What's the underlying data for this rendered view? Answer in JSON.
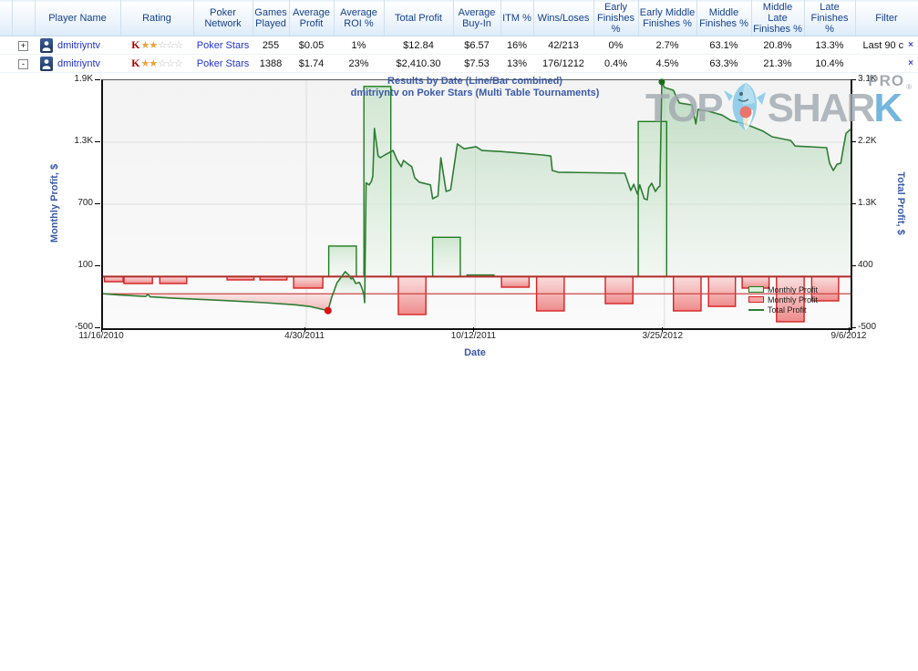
{
  "table": {
    "columns": [
      "",
      "",
      "Player Name",
      "Rating",
      "Poker Network",
      "Games Played",
      "Average Profit",
      "Average ROI %",
      "Total Profit",
      "Average Buy-In",
      "ITM %",
      "Wins/Loses",
      "Early Finishes %",
      "Early Middle Finishes %",
      "Middle Finishes %",
      "Middle Late Finishes %",
      "Late Finishes %",
      "Filter"
    ],
    "rows": [
      {
        "expand": "+",
        "player": "dmitriyntv",
        "rating_letter": "K",
        "stars_filled": "★★",
        "stars_empty": "☆☆☆",
        "network": "Poker Stars",
        "games_played": "255",
        "average_profit": "$0.05",
        "average_roi": "1%",
        "total_profit": "$12.84",
        "average_buyin": "$6.57",
        "itm": "16%",
        "wins_loses": "42/213",
        "early_finishes": "0%",
        "early_middle_finishes": "2.7%",
        "middle_finishes": "63.1%",
        "middle_late_finishes": "20.8%",
        "late_finishes": "13.3%",
        "filter": "Last 90 c",
        "remove": "×"
      },
      {
        "expand": "-",
        "player": "dmitriyntv",
        "rating_letter": "K",
        "stars_filled": "★★",
        "stars_empty": "☆☆☆",
        "network": "Poker Stars",
        "games_played": "1388",
        "average_profit": "$1.74",
        "average_roi": "23%",
        "total_profit": "$2,410.30",
        "average_buyin": "$7.53",
        "itm": "13%",
        "wins_loses": "176/1212",
        "early_finishes": "0.4%",
        "early_middle_finishes": "4.5%",
        "middle_finishes": "63.3%",
        "middle_late_finishes": "21.3%",
        "late_finishes": "10.4%",
        "filter": "",
        "remove": "×"
      }
    ]
  },
  "chart_data": {
    "type": "line+bar",
    "title_line1": "Results by Date (Line/Bar combined)",
    "title_line2": "dmitriyntv on Poker Stars (Multi Table Tournaments)",
    "x_axis": {
      "label": "Date",
      "ticks": [
        {
          "label": "11/16/2010",
          "f": 0.0
        },
        {
          "label": "4/30/2011",
          "f": 0.272
        },
        {
          "label": "10/12/2011",
          "f": 0.498
        },
        {
          "label": "3/25/2012",
          "f": 0.751
        },
        {
          "label": "9/6/2012",
          "f": 1.0
        }
      ]
    },
    "left_axis": {
      "label": "Monthly Profit, $",
      "min": -500,
      "max": 1900,
      "ticks": [
        {
          "label": "1.9K",
          "v": 1900
        },
        {
          "label": "1.3K",
          "v": 1300
        },
        {
          "label": "700",
          "v": 700
        },
        {
          "label": "100",
          "v": 100
        },
        {
          "label": "-500",
          "v": -500
        }
      ]
    },
    "right_axis": {
      "label": "Total Profit, $",
      "min": -500,
      "max": 3100,
      "ticks": [
        {
          "label": "3.1K",
          "v": 3100
        },
        {
          "label": "2.2K",
          "v": 2200
        },
        {
          "label": "1.3K",
          "v": 1300
        },
        {
          "label": "400",
          "v": 400
        },
        {
          "label": "-500",
          "v": -500
        }
      ]
    },
    "legend": [
      {
        "label": "Monthly Profit",
        "type": "bar-green"
      },
      {
        "label": "Monthly Profit",
        "type": "bar-red"
      },
      {
        "label": "Total Profit",
        "type": "line"
      }
    ],
    "bars_monthly_profit": [
      {
        "f0": 0.002,
        "f1": 0.027,
        "v": -50
      },
      {
        "f0": 0.028,
        "f1": 0.066,
        "v": -68
      },
      {
        "f0": 0.076,
        "f1": 0.112,
        "v": -68
      },
      {
        "f0": 0.166,
        "f1": 0.202,
        "v": -33
      },
      {
        "f0": 0.21,
        "f1": 0.246,
        "v": -33
      },
      {
        "f0": 0.255,
        "f1": 0.294,
        "v": -112
      },
      {
        "f0": 0.302,
        "f1": 0.339,
        "v": 295
      },
      {
        "f0": 0.349,
        "f1": 0.385,
        "v": 1840
      },
      {
        "f0": 0.395,
        "f1": 0.432,
        "v": -368
      },
      {
        "f0": 0.441,
        "f1": 0.478,
        "v": 380
      },
      {
        "f0": 0.487,
        "f1": 0.523,
        "v": 15
      },
      {
        "f0": 0.533,
        "f1": 0.57,
        "v": -103
      },
      {
        "f0": 0.58,
        "f1": 0.617,
        "v": -333
      },
      {
        "f0": 0.672,
        "f1": 0.709,
        "v": -262
      },
      {
        "f0": 0.716,
        "f1": 0.754,
        "v": 1500
      },
      {
        "f0": 0.763,
        "f1": 0.8,
        "v": -333
      },
      {
        "f0": 0.81,
        "f1": 0.846,
        "v": -289
      },
      {
        "f0": 0.855,
        "f1": 0.891,
        "v": -112
      },
      {
        "f0": 0.901,
        "f1": 0.938,
        "v": -438
      },
      {
        "f0": 0.948,
        "f1": 0.984,
        "v": -236
      }
    ],
    "line_total_profit": [
      [
        0.0,
        0
      ],
      [
        0.02,
        -15
      ],
      [
        0.033,
        -25
      ],
      [
        0.057,
        -40
      ],
      [
        0.06,
        -10
      ],
      [
        0.063,
        -45
      ],
      [
        0.094,
        -65
      ],
      [
        0.135,
        -85
      ],
      [
        0.176,
        -105
      ],
      [
        0.216,
        -130
      ],
      [
        0.257,
        -160
      ],
      [
        0.277,
        -185
      ],
      [
        0.289,
        -215
      ],
      [
        0.301,
        -245
      ],
      [
        0.306,
        -50
      ],
      [
        0.313,
        160
      ],
      [
        0.324,
        320
      ],
      [
        0.328,
        280
      ],
      [
        0.332,
        215
      ],
      [
        0.334,
        230
      ],
      [
        0.338,
        150
      ],
      [
        0.343,
        165
      ],
      [
        0.346,
        95
      ],
      [
        0.349,
        -15
      ],
      [
        0.35,
        -130
      ],
      [
        0.352,
        1610
      ],
      [
        0.356,
        1580
      ],
      [
        0.359,
        1630
      ],
      [
        0.361,
        1710
      ],
      [
        0.363,
        2400
      ],
      [
        0.366,
        2170
      ],
      [
        0.368,
        2000
      ],
      [
        0.371,
        1975
      ],
      [
        0.377,
        2015
      ],
      [
        0.388,
        2080
      ],
      [
        0.393,
        1950
      ],
      [
        0.399,
        1845
      ],
      [
        0.402,
        1935
      ],
      [
        0.409,
        1875
      ],
      [
        0.413,
        1845
      ],
      [
        0.417,
        1685
      ],
      [
        0.423,
        1620
      ],
      [
        0.438,
        1580
      ],
      [
        0.441,
        1380
      ],
      [
        0.448,
        1420
      ],
      [
        0.452,
        1975
      ],
      [
        0.459,
        1485
      ],
      [
        0.465,
        1510
      ],
      [
        0.474,
        2175
      ],
      [
        0.483,
        2105
      ],
      [
        0.499,
        2135
      ],
      [
        0.507,
        2080
      ],
      [
        0.532,
        2065
      ],
      [
        0.56,
        2040
      ],
      [
        0.588,
        2015
      ],
      [
        0.599,
        2000
      ],
      [
        0.601,
        1790
      ],
      [
        0.609,
        1765
      ],
      [
        0.698,
        1750
      ],
      [
        0.706,
        1500
      ],
      [
        0.71,
        1590
      ],
      [
        0.715,
        1445
      ],
      [
        0.718,
        1580
      ],
      [
        0.724,
        1380
      ],
      [
        0.728,
        1365
      ],
      [
        0.73,
        1540
      ],
      [
        0.734,
        1605
      ],
      [
        0.739,
        1485
      ],
      [
        0.743,
        1550
      ],
      [
        0.745,
        1560
      ],
      [
        0.7475,
        3075
      ],
      [
        0.751,
        2995
      ],
      [
        0.763,
        2955
      ],
      [
        0.767,
        2860
      ],
      [
        0.771,
        2770
      ],
      [
        0.788,
        2740
      ],
      [
        0.793,
        2465
      ],
      [
        0.796,
        2675
      ],
      [
        0.81,
        2650
      ],
      [
        0.828,
        2595
      ],
      [
        0.84,
        2515
      ],
      [
        0.859,
        2465
      ],
      [
        0.865,
        2440
      ],
      [
        0.883,
        2360
      ],
      [
        0.895,
        2280
      ],
      [
        0.92,
        2225
      ],
      [
        0.926,
        2145
      ],
      [
        0.944,
        2135
      ],
      [
        0.968,
        2120
      ],
      [
        0.972,
        1895
      ],
      [
        0.977,
        1790
      ],
      [
        0.982,
        1880
      ],
      [
        0.987,
        1895
      ],
      [
        0.99,
        2095
      ],
      [
        0.994,
        2330
      ],
      [
        0.998,
        2370
      ],
      [
        1.0,
        2385
      ]
    ],
    "min_marker": {
      "f": 0.301,
      "v": -245
    },
    "max_marker": {
      "f": 0.7475,
      "v": 3075
    }
  },
  "watermark": {
    "word_top": "TOP",
    "word_shark_gray": "SHAR",
    "word_shark_blue": "K",
    "pro": "PRO",
    "registered": "®"
  },
  "colors": {
    "header_text": "#15428b",
    "link_blue": "#2233cc",
    "money_green": "#009933",
    "rating_red": "#b00000",
    "star_gold": "#e8a33d",
    "star_silver": "#b9b9b9",
    "close_x_blue": "#4444cc",
    "bar_green_border": "#1e7d1e",
    "bar_red_border": "#d62222",
    "line_green": "#2e7d32",
    "baseline_dark_red": "#b22a2a",
    "zero_line_red": "#cc4444",
    "grid": "#dedede",
    "title_blue": "#3a5aa8",
    "watermark_gray": "#a2aab2",
    "watermark_blue": "#57a7d8"
  }
}
